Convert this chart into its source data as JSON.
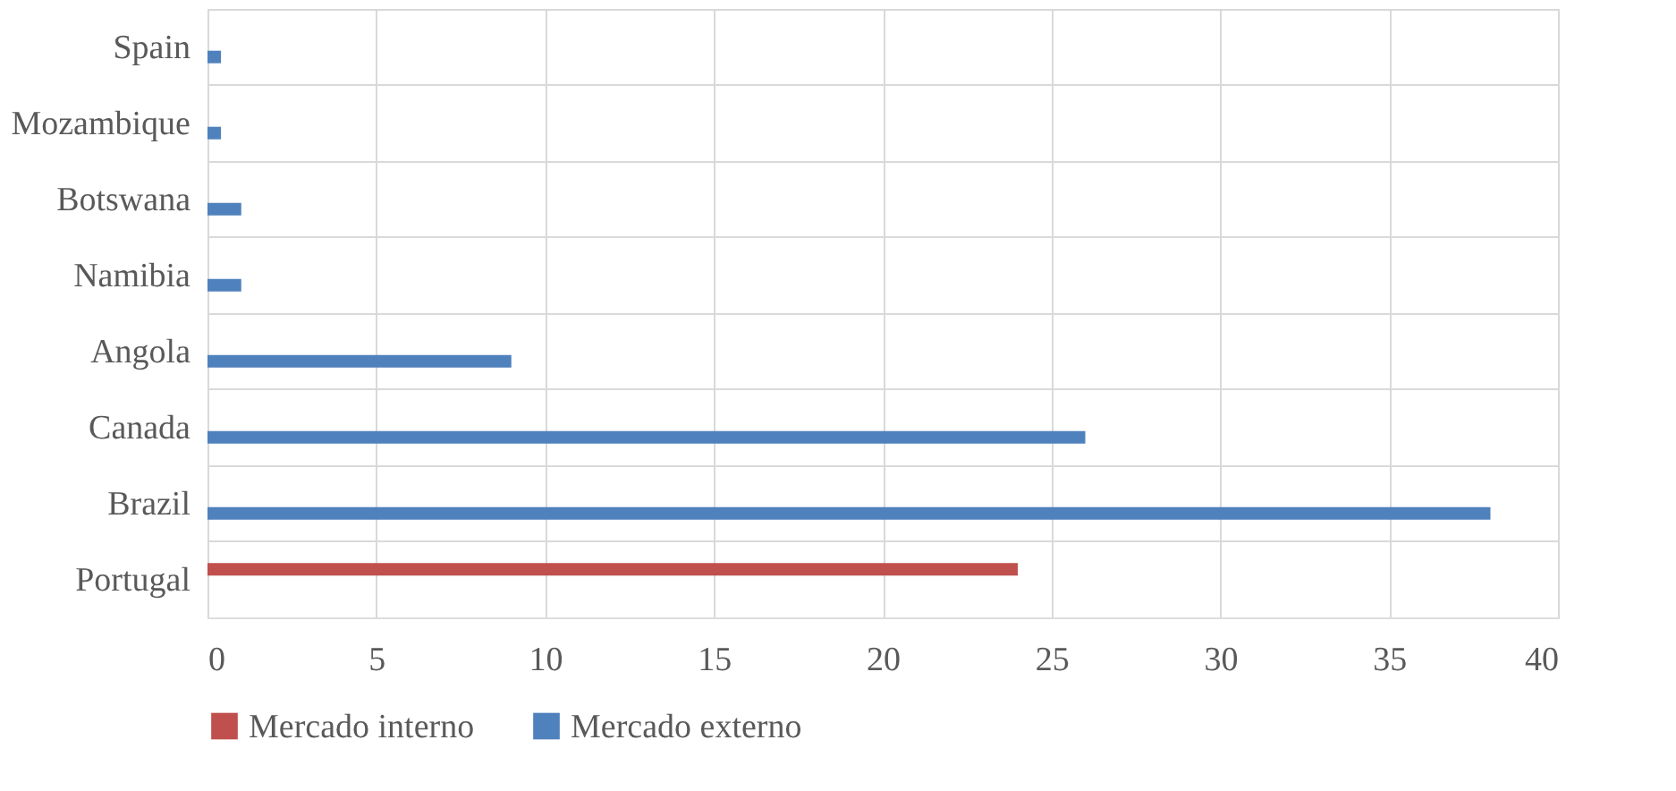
{
  "chart_data": {
    "type": "bar",
    "orientation": "horizontal",
    "categories": [
      "Spain",
      "Mozambique",
      "Botswana",
      "Namibia",
      "Angola",
      "Canada",
      "Brazil",
      "Portugal"
    ],
    "series": [
      {
        "name": "Mercado interno",
        "color": "#c0504d",
        "values": [
          null,
          null,
          null,
          null,
          null,
          null,
          null,
          24
        ]
      },
      {
        "name": "Mercado externo",
        "color": "#4f81bd",
        "values": [
          0.4,
          0.4,
          1,
          1,
          9,
          26,
          38,
          null
        ]
      }
    ],
    "xlim": [
      0,
      40
    ],
    "xticks": [
      0,
      5,
      10,
      15,
      20,
      25,
      30,
      35,
      40
    ],
    "grid": true,
    "legend": "bottom"
  }
}
